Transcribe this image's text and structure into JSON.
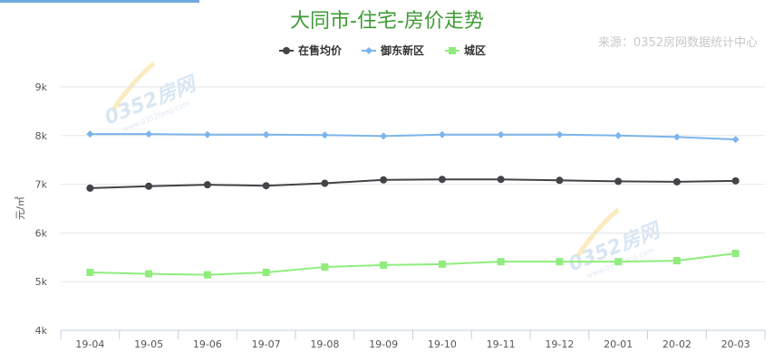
{
  "chart_data": {
    "type": "line",
    "title": "大同市-住宅-房价走势",
    "source": "来源：0352房网数据统计中心",
    "ylabel": "元/㎡",
    "ylim": [
      4000,
      9000
    ],
    "yticks": [
      4000,
      5000,
      6000,
      7000,
      8000,
      9000
    ],
    "ytick_labels": [
      "4k",
      "5k",
      "6k",
      "7k",
      "8k",
      "9k"
    ],
    "categories": [
      "19-04",
      "19-05",
      "19-06",
      "19-07",
      "19-08",
      "19-09",
      "19-10",
      "19-11",
      "19-12",
      "20-01",
      "20-02",
      "20-03"
    ],
    "legend_position": "top-center",
    "grid": true,
    "series": [
      {
        "name": "在售均价",
        "color": "#434348",
        "marker": "circle",
        "values": [
          6920,
          6960,
          6990,
          6970,
          7020,
          7090,
          7100,
          7100,
          7080,
          7060,
          7050,
          7070
        ]
      },
      {
        "name": "御东新区",
        "color": "#7cb5ec",
        "marker": "diamond",
        "values": [
          8030,
          8030,
          8020,
          8020,
          8010,
          7990,
          8020,
          8020,
          8020,
          8000,
          7970,
          7920
        ]
      },
      {
        "name": "城区",
        "color": "#90ed7d",
        "marker": "square",
        "values": [
          5190,
          5160,
          5140,
          5190,
          5300,
          5340,
          5360,
          5410,
          5410,
          5410,
          5430,
          5580
        ]
      }
    ]
  },
  "watermark": {
    "text": "0352房网",
    "subtext": "www.0352fang.com"
  }
}
